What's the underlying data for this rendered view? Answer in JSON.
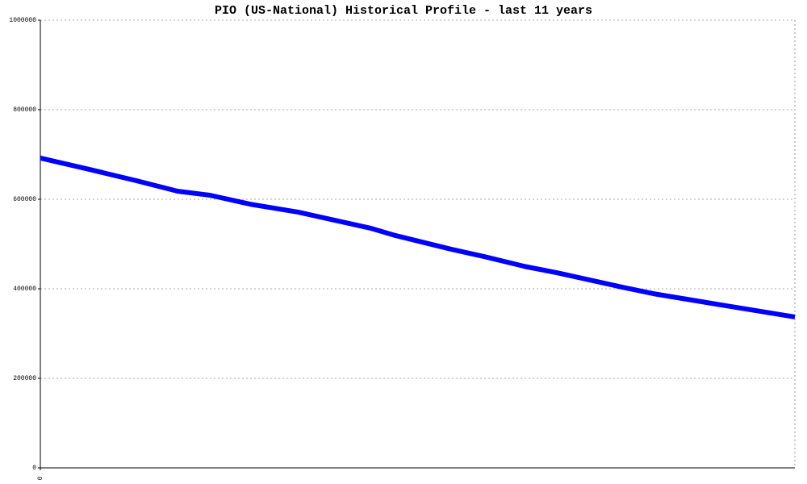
{
  "chart_data": {
    "type": "line",
    "title": "PIO (US-National) Historical Profile - last 11 years",
    "x": [
      0,
      60,
      120,
      170,
      210,
      260,
      320,
      410,
      440,
      510,
      550,
      600,
      640,
      720,
      760,
      830,
      935
    ],
    "series": [
      {
        "name": "PIO",
        "color": "#0000ff",
        "values": [
          692000,
          667000,
          641000,
          618000,
          609000,
          589000,
          571000,
          535000,
          519000,
          488000,
          472000,
          450000,
          436000,
          404000,
          389000,
          368000,
          337000
        ]
      }
    ],
    "xlim": [
      0,
      935
    ],
    "xticks": [
      0
    ],
    "ylim": [
      0,
      1000000
    ],
    "yticks": [
      0,
      200000,
      400000,
      600000,
      800000,
      1000000
    ],
    "grid": true
  }
}
